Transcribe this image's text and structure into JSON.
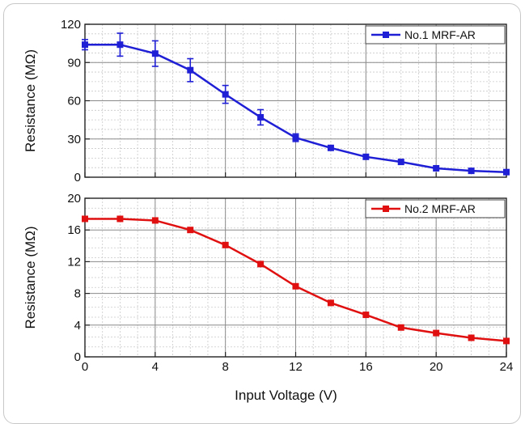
{
  "chart_data": [
    {
      "type": "line",
      "ylabel": "Resistance (MΩ)",
      "xlabel": "",
      "xlim": [
        0,
        24
      ],
      "ylim": [
        0,
        120
      ],
      "x_ticks": [
        "0",
        "4",
        "8",
        "12",
        "16",
        "20",
        "24"
      ],
      "y_ticks": [
        "0",
        "30",
        "60",
        "90",
        "120"
      ],
      "grid": true,
      "legend_position": "top-right",
      "color": "#1f1fd6",
      "series": [
        {
          "name": "No.1 MRF-AR",
          "x": [
            0,
            2,
            4,
            6,
            8,
            10,
            12,
            14,
            16,
            18,
            20,
            22,
            24
          ],
          "y": [
            104,
            104,
            97,
            84,
            65,
            47,
            31,
            23,
            16,
            12,
            7,
            5,
            4
          ],
          "error": [
            4,
            9,
            10,
            9,
            7,
            6,
            3,
            1,
            1,
            1,
            1,
            1,
            1
          ]
        }
      ]
    },
    {
      "type": "line",
      "ylabel": "Resistance (MΩ)",
      "xlabel": "Input Voltage (V)",
      "xlim": [
        0,
        24
      ],
      "ylim": [
        0,
        20
      ],
      "x_ticks": [
        "0",
        "4",
        "8",
        "12",
        "16",
        "20",
        "24"
      ],
      "y_ticks": [
        "0",
        "4",
        "8",
        "12",
        "16",
        "20"
      ],
      "grid": true,
      "legend_position": "top-right",
      "color": "#e01010",
      "series": [
        {
          "name": "No.2 MRF-AR",
          "x": [
            0,
            2,
            4,
            6,
            8,
            10,
            12,
            14,
            16,
            18,
            20,
            22,
            24
          ],
          "y": [
            17.4,
            17.4,
            17.2,
            16.0,
            14.1,
            11.7,
            8.9,
            6.8,
            5.3,
            3.7,
            3.0,
            2.4,
            2.0
          ]
        }
      ]
    }
  ]
}
